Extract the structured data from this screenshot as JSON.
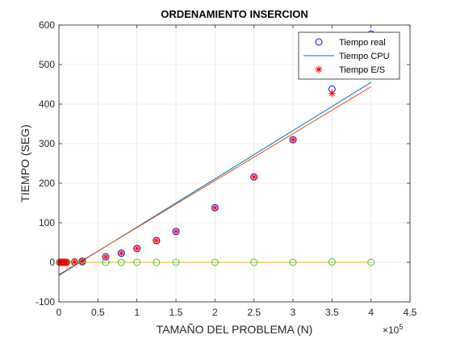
{
  "chart_data": {
    "type": "scatter",
    "title": "ORDENAMIENTO INSERCION",
    "xlabel": "TAMAÑO DEL PROBLEMA (N)",
    "ylabel": "TIEMPO (SEG)",
    "x_exponent_label": "×10",
    "x_exponent_power": "5",
    "xlim": [
      0,
      450000
    ],
    "ylim": [
      -100,
      600
    ],
    "x_ticks": [
      0,
      50000,
      100000,
      150000,
      200000,
      250000,
      300000,
      350000,
      400000,
      450000
    ],
    "x_tick_labels": [
      "0",
      "0.5",
      "1",
      "1.5",
      "2",
      "2.5",
      "3",
      "3.5",
      "4",
      "4.5"
    ],
    "y_ticks": [
      -100,
      0,
      100,
      200,
      300,
      400,
      500,
      600
    ],
    "y_tick_labels": [
      "-100",
      "0",
      "100",
      "200",
      "300",
      "400",
      "500",
      "600"
    ],
    "grid": true,
    "legend_position": "top-right",
    "legend": [
      {
        "label": "Tiempo real",
        "marker": "circle",
        "color": "#0000ff"
      },
      {
        "label": "Tiempo CPU",
        "marker": "line",
        "color": "#0072bd"
      },
      {
        "label": "Tiempo E/S",
        "marker": "asterisk",
        "color": "#ff0000"
      }
    ],
    "series": [
      {
        "name": "Tiempo real",
        "kind": "circle",
        "color": "#0000ff",
        "x": [
          1000,
          2000,
          3000,
          4000,
          5000,
          6000,
          7000,
          8000,
          9000,
          10000,
          20000,
          30000,
          60000,
          80000,
          100000,
          125000,
          150000,
          200000,
          250000,
          300000,
          350000,
          400000
        ],
        "y": [
          0,
          0,
          0,
          0,
          0,
          0,
          0,
          0,
          0,
          0,
          1,
          3,
          14,
          23,
          35,
          55,
          78,
          138,
          216,
          310,
          438,
          577
        ]
      },
      {
        "name": "Tiempo E/S",
        "kind": "asterisk",
        "color": "#ff0000",
        "x": [
          1000,
          2000,
          3000,
          4000,
          5000,
          6000,
          7000,
          8000,
          9000,
          10000,
          20000,
          30000,
          60000,
          80000,
          100000,
          125000,
          150000,
          200000,
          250000,
          300000,
          350000
        ],
        "y": [
          0,
          0,
          0,
          0,
          0,
          0,
          0,
          0,
          0,
          0,
          1,
          3,
          14,
          23,
          35,
          55,
          78,
          138,
          216,
          310,
          427
        ]
      },
      {
        "name": "",
        "kind": "circle",
        "color": "#33cc33",
        "x": [
          1000,
          2000,
          3000,
          4000,
          5000,
          6000,
          7000,
          8000,
          9000,
          10000,
          20000,
          30000,
          60000,
          80000,
          100000,
          125000,
          150000,
          200000,
          250000,
          300000,
          350000,
          400000
        ],
        "y": [
          0,
          0,
          0,
          0,
          0,
          0,
          0,
          0,
          0,
          0,
          0,
          0,
          0,
          0,
          0,
          0,
          0,
          0,
          0,
          0,
          1,
          0
        ]
      },
      {
        "name": "Tiempo CPU",
        "kind": "line",
        "color": "#0072bd",
        "x": [
          0,
          400000
        ],
        "y": [
          -33,
          455
        ]
      },
      {
        "name": "",
        "kind": "line",
        "color": "#d95319",
        "x": [
          0,
          400000
        ],
        "y": [
          -31,
          444
        ]
      },
      {
        "name": "",
        "kind": "line",
        "color": "#edb120",
        "x": [
          0,
          400000
        ],
        "y": [
          0,
          0
        ]
      }
    ]
  }
}
